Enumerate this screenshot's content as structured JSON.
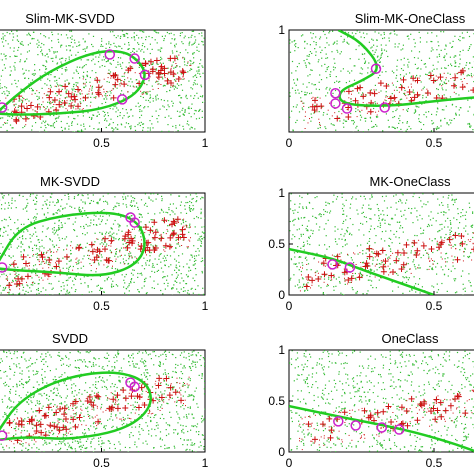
{
  "chart_data": [
    {
      "type": "scatter",
      "title": "Slim-MK-SVDD",
      "xlim": [
        0,
        1
      ],
      "ylim": [
        0,
        1
      ],
      "x_ticks": [
        "0.5",
        "1"
      ],
      "y_ticks": [],
      "boundary": "closed",
      "boundary_points": [
        [
          0.0,
          0.2
        ],
        [
          0.1,
          0.38
        ],
        [
          0.25,
          0.6
        ],
        [
          0.45,
          0.78
        ],
        [
          0.6,
          0.8
        ],
        [
          0.68,
          0.7
        ],
        [
          0.72,
          0.55
        ],
        [
          0.66,
          0.35
        ],
        [
          0.5,
          0.22
        ],
        [
          0.3,
          0.18
        ],
        [
          0.1,
          0.17
        ],
        [
          0.0,
          0.18
        ]
      ],
      "support_vectors": [
        [
          0.54,
          0.76
        ],
        [
          0.66,
          0.72
        ],
        [
          0.71,
          0.56
        ],
        [
          0.6,
          0.32
        ],
        [
          0.02,
          0.24
        ]
      ]
    },
    {
      "type": "scatter",
      "title": "Slim-MK-OneClass",
      "xlim": [
        0,
        1
      ],
      "ylim": [
        0,
        1
      ],
      "x_ticks": [
        "0",
        "0.5",
        "1"
      ],
      "y_ticks": [
        "1"
      ],
      "boundary": "open",
      "boundary_points": [
        [
          0.17,
          1.0
        ],
        [
          0.25,
          0.88
        ],
        [
          0.32,
          0.62
        ],
        [
          0.25,
          0.5
        ],
        [
          0.17,
          0.4
        ],
        [
          0.18,
          0.27
        ],
        [
          0.35,
          0.25
        ],
        [
          0.55,
          0.32
        ],
        [
          0.75,
          0.36
        ],
        [
          1.0,
          0.35
        ]
      ],
      "support_vectors": [
        [
          0.3,
          0.62
        ],
        [
          0.16,
          0.38
        ],
        [
          0.16,
          0.28
        ],
        [
          0.2,
          0.23
        ],
        [
          0.33,
          0.24
        ],
        [
          0.78,
          0.33
        ],
        [
          0.88,
          0.32
        ],
        [
          0.98,
          0.33
        ]
      ]
    },
    {
      "type": "scatter",
      "title": "MK-SVDD",
      "xlim": [
        0,
        1
      ],
      "ylim": [
        0,
        1
      ],
      "x_ticks": [
        "0.5",
        "1"
      ],
      "y_ticks": [],
      "boundary": "closed",
      "boundary_points": [
        [
          0.0,
          0.32
        ],
        [
          0.1,
          0.66
        ],
        [
          0.3,
          0.78
        ],
        [
          0.55,
          0.82
        ],
        [
          0.68,
          0.72
        ],
        [
          0.72,
          0.48
        ],
        [
          0.66,
          0.28
        ],
        [
          0.5,
          0.18
        ],
        [
          0.3,
          0.22
        ],
        [
          0.1,
          0.24
        ],
        [
          0.0,
          0.26
        ]
      ],
      "support_vectors": [
        [
          0.64,
          0.76
        ],
        [
          0.66,
          0.71
        ],
        [
          0.02,
          0.27
        ]
      ]
    },
    {
      "type": "scatter",
      "title": "MK-OneClass",
      "xlim": [
        0,
        1
      ],
      "ylim": [
        0,
        1
      ],
      "x_ticks": [
        "0",
        "0.5",
        "1"
      ],
      "y_ticks": [
        "0",
        "0.5",
        "1"
      ],
      "boundary": "open",
      "boundary_points": [
        [
          0.0,
          0.45
        ],
        [
          0.15,
          0.36
        ],
        [
          0.25,
          0.25
        ],
        [
          0.45,
          0.05
        ],
        [
          0.5,
          0.0
        ]
      ],
      "support_vectors": [
        [
          0.15,
          0.3
        ],
        [
          0.21,
          0.27
        ]
      ]
    },
    {
      "type": "scatter",
      "title": "SVDD",
      "xlim": [
        0,
        1
      ],
      "ylim": [
        0,
        1
      ],
      "x_ticks": [
        "0.5",
        "1"
      ],
      "y_ticks": [],
      "boundary": "closed",
      "boundary_points": [
        [
          0.0,
          0.2
        ],
        [
          0.1,
          0.5
        ],
        [
          0.3,
          0.72
        ],
        [
          0.55,
          0.8
        ],
        [
          0.72,
          0.7
        ],
        [
          0.75,
          0.45
        ],
        [
          0.62,
          0.22
        ],
        [
          0.35,
          0.12
        ],
        [
          0.15,
          0.15
        ],
        [
          0.0,
          0.12
        ]
      ],
      "support_vectors": [
        [
          0.64,
          0.68
        ],
        [
          0.66,
          0.64
        ],
        [
          0.02,
          0.16
        ]
      ]
    },
    {
      "type": "scatter",
      "title": "OneClass",
      "xlim": [
        0,
        1
      ],
      "ylim": [
        0,
        1
      ],
      "x_ticks": [
        "0",
        "0.5",
        "1"
      ],
      "y_ticks": [
        "0",
        "0.5",
        "1"
      ],
      "boundary": "open",
      "boundary_points": [
        [
          0.0,
          0.45
        ],
        [
          0.2,
          0.33
        ],
        [
          0.4,
          0.22
        ],
        [
          0.55,
          0.1
        ],
        [
          0.65,
          0.0
        ]
      ],
      "support_vectors": [
        [
          0.17,
          0.3
        ],
        [
          0.23,
          0.26
        ],
        [
          0.32,
          0.24
        ],
        [
          0.38,
          0.22
        ]
      ]
    }
  ],
  "colors": {
    "boundary": "#22cc22",
    "outlier_points": "#33bb33",
    "target_points": "#cc1111",
    "support_vectors": "#cc22cc"
  }
}
